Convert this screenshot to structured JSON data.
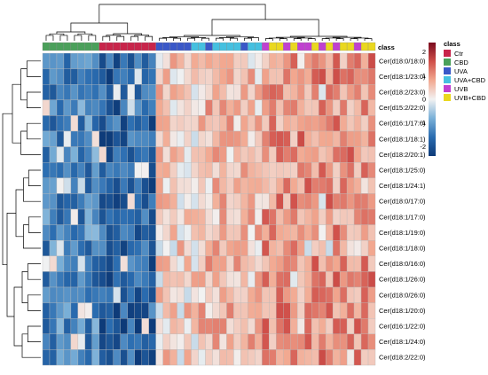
{
  "chart_data": {
    "type": "heatmap",
    "class_label": "class",
    "legend": {
      "title": "class",
      "entries": [
        {
          "label": "Ctr",
          "color": "#c8244a"
        },
        {
          "label": "CBD",
          "color": "#4aa05a"
        },
        {
          "label": "UVA",
          "color": "#3a58c8"
        },
        {
          "label": "UVA+CBD",
          "color": "#45c0e0"
        },
        {
          "label": "UVB",
          "color": "#c040d0"
        },
        {
          "label": "UVB+CBD",
          "color": "#ead820"
        }
      ]
    },
    "colorbar": {
      "ticks": [
        2,
        1,
        0,
        -1,
        -2
      ],
      "range": [
        -2.4,
        2.4
      ],
      "colors": [
        "#0d3a78",
        "#2a6cb0",
        "#7ab0d8",
        "#f2f2f2",
        "#f2a890",
        "#d0504a",
        "#7a0a1e"
      ]
    },
    "row_labels": [
      "Cer(d18:0/18:0)",
      "Cer(d18:1/23:0)",
      "Cer(d18:2/23:0)",
      "Cer(d15:2/22:0)",
      "Cer(d16:1/17:0)",
      "Cer(d18:1/18:1)",
      "Cer(d18:2/20:1)",
      "Cer(d18:1/25:0)",
      "Cer(d18:1/24:1)",
      "Cer(d18:0/17:0)",
      "Cer(d18:1/17:0)",
      "Cer(d18:1/19:0)",
      "Cer(d18:1/18:0)",
      "Cer(d18:0/16:0)",
      "Cer(d18:1/26:0)",
      "Cer(d18:0/26:0)",
      "Cer(d18:1/20:0)",
      "Cer(d16:1/22:0)",
      "Cer(d18:1/24:0)",
      "Cer(d18:2/22:0)"
    ],
    "column_classes": [
      "CBD",
      "CBD",
      "CBD",
      "CBD",
      "CBD",
      "CBD",
      "CBD",
      "CBD",
      "Ctr",
      "Ctr",
      "Ctr",
      "Ctr",
      "Ctr",
      "Ctr",
      "Ctr",
      "Ctr",
      "UVA",
      "UVA",
      "UVA",
      "UVA",
      "UVA",
      "UVA+CBD",
      "UVA+CBD",
      "UVA",
      "UVA+CBD",
      "UVA+CBD",
      "UVA+CBD",
      "UVA+CBD",
      "UVA",
      "UVA+CBD",
      "UVA+CBD",
      "UVB",
      "UVB+CBD",
      "UVB+CBD",
      "UVB",
      "UVB+CBD",
      "UVB",
      "UVB",
      "UVB+CBD",
      "UVB",
      "UVB+CBD",
      "UVB",
      "UVB+CBD",
      "UVB+CBD",
      "UVB",
      "UVB+CBD",
      "UVB+CBD"
    ],
    "z_pattern": "rows = lipids, columns = samples; CBD and Ctr samples low (-1 to -2.4), UV-treated samples high (0 to +2.4)"
  }
}
